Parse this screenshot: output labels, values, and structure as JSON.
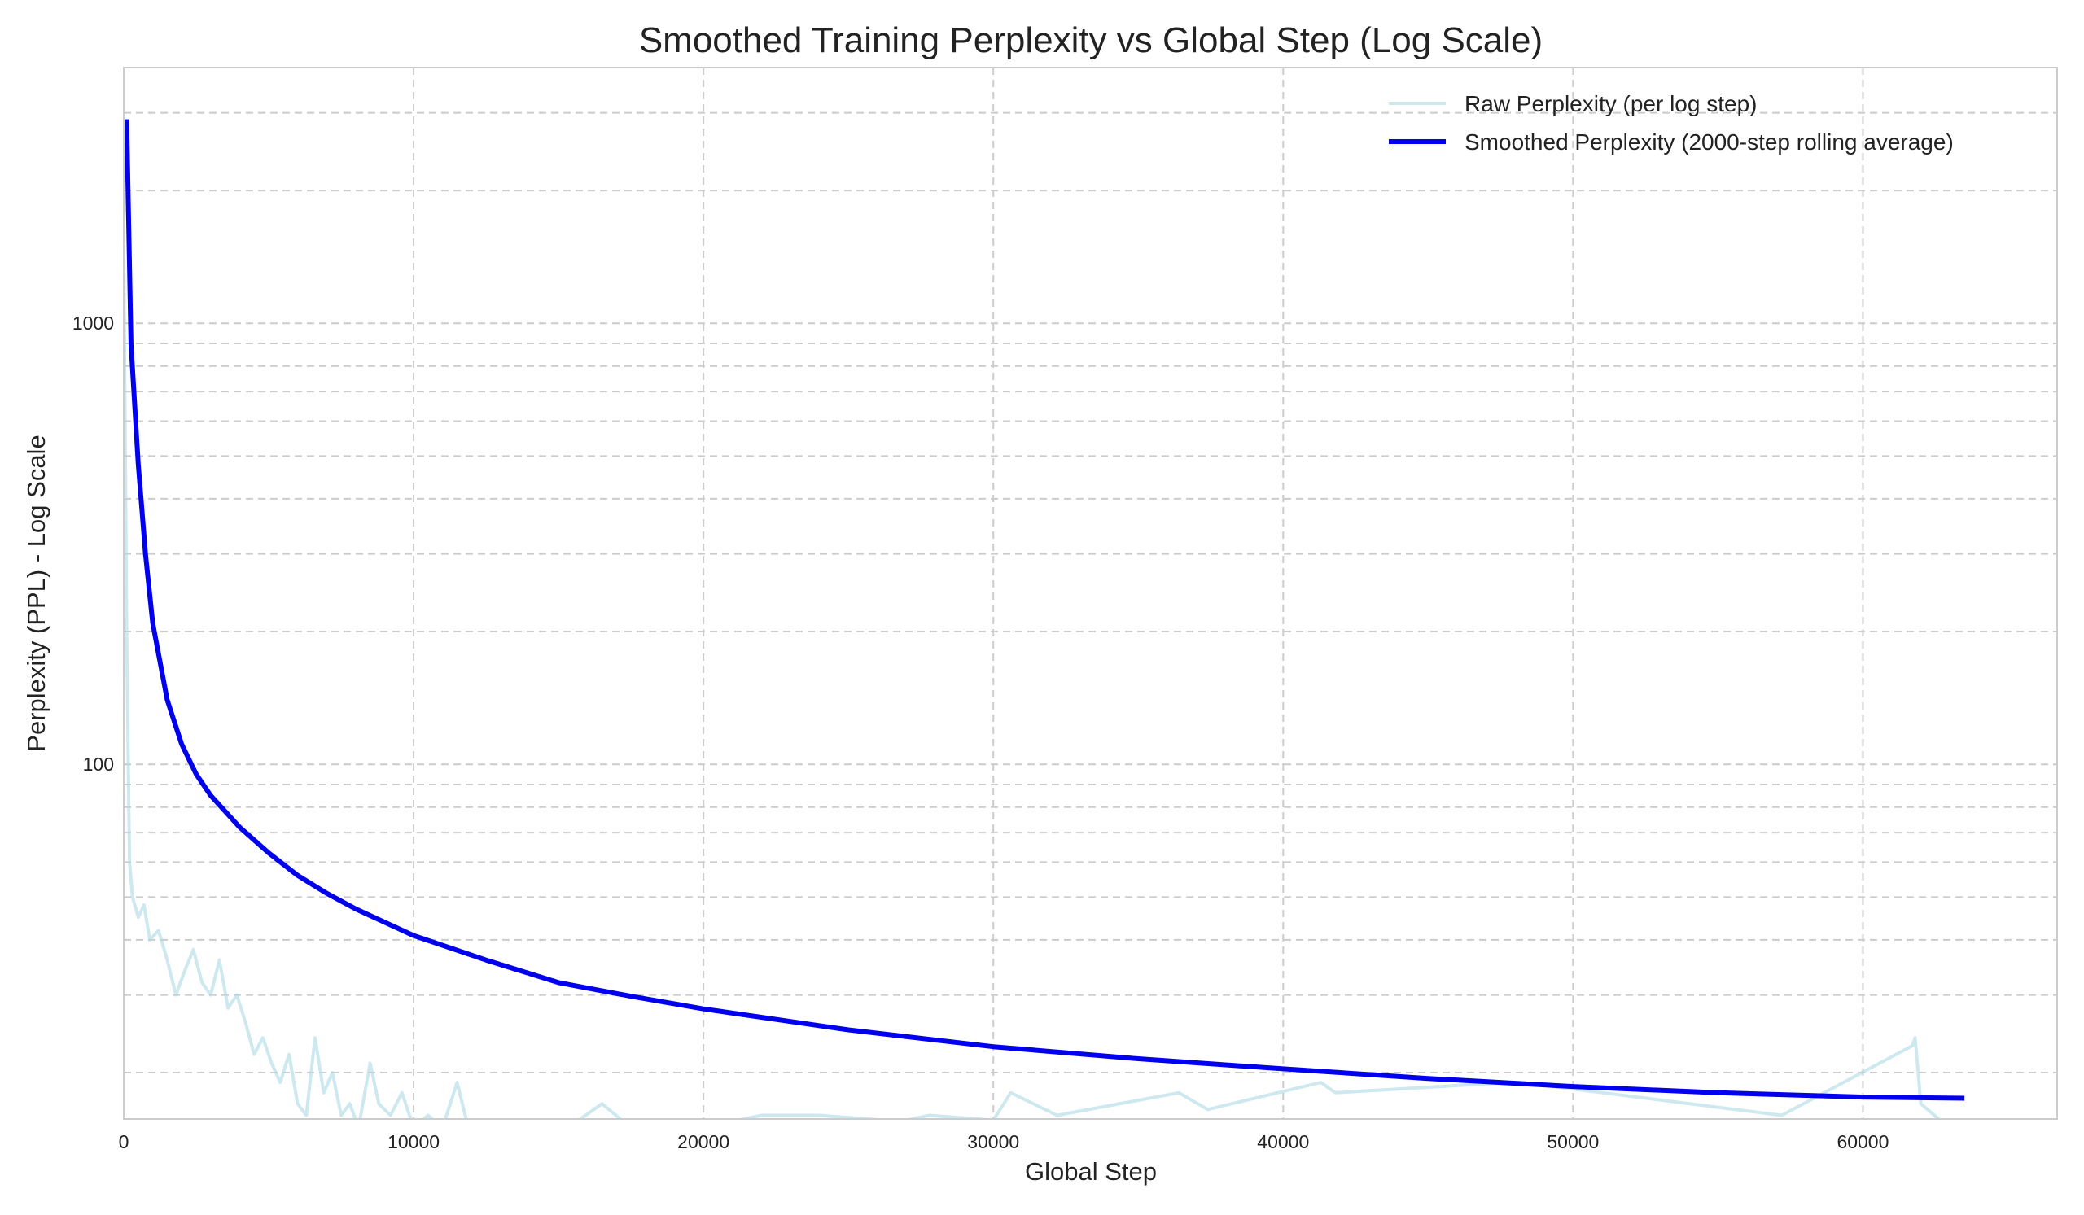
{
  "chart_data": {
    "type": "line",
    "title": "Smoothed Training Perplexity vs Global Step (Log Scale)",
    "xlabel": "Global Step",
    "ylabel": "Perplexity (PPL) - Log Scale",
    "xlim": [
      0,
      66700
    ],
    "ylim": [
      15.7,
      3800
    ],
    "yscale": "log",
    "grid": true,
    "legend_position": "top-right",
    "xticks": [
      0,
      10000,
      20000,
      30000,
      40000,
      50000,
      60000
    ],
    "xtick_labels": [
      "0",
      "10000",
      "20000",
      "30000",
      "40000",
      "50000",
      "60000"
    ],
    "yticks": [
      100,
      1000
    ],
    "ytick_labels": [
      "100",
      "1000"
    ],
    "series": [
      {
        "name": "Raw Perplexity (per log step)",
        "color": "#add8e6",
        "x": [
          0,
          100,
          200,
          300,
          500,
          700,
          900,
          1200,
          1500,
          1800,
          2100,
          2400,
          2700,
          3000,
          3300,
          3600,
          3900,
          4200,
          4500,
          4800,
          5100,
          5400,
          5700,
          6000,
          6300,
          6600,
          6900,
          7200,
          7500,
          7800,
          8100,
          8500,
          8800,
          9200,
          9600,
          10000,
          10500,
          11000,
          11500,
          12000,
          13000,
          14000,
          15000,
          16500,
          17500,
          20000,
          22000,
          24000,
          26800,
          27800,
          30000,
          30600,
          32200,
          36400,
          37400,
          41300,
          41800,
          47800,
          48200,
          57200,
          61700,
          61800,
          62000,
          63500
        ],
        "y": [
          1500,
          200,
          60,
          50,
          45,
          48,
          40,
          42,
          36,
          30,
          34,
          38,
          32,
          30,
          36,
          28,
          30,
          26,
          22,
          24,
          21,
          19,
          22,
          17,
          16,
          24,
          18,
          20,
          16,
          17,
          15,
          21,
          17,
          16,
          18,
          15,
          16,
          15,
          19,
          14,
          15,
          14,
          14.5,
          17,
          15,
          15,
          16,
          16,
          15.5,
          16,
          15.6,
          18,
          16,
          18,
          16.5,
          19,
          18,
          19,
          19,
          16,
          23,
          24,
          17,
          14
        ]
      },
      {
        "name": "Smoothed Perplexity (2000-step rolling average)",
        "color": "#0000ee",
        "x": [
          100,
          250,
          500,
          750,
          1000,
          1500,
          2000,
          2500,
          3000,
          4000,
          5000,
          6000,
          7000,
          8000,
          10000,
          12500,
          15000,
          17500,
          20000,
          25000,
          30000,
          35000,
          40000,
          45000,
          50000,
          55000,
          60000,
          63500
        ],
        "y": [
          2900,
          900,
          480,
          300,
          209,
          140,
          111,
          95,
          85,
          72,
          63,
          56,
          51,
          47,
          40.9,
          36,
          32,
          29.8,
          27.9,
          25,
          22.9,
          21.5,
          20.4,
          19.4,
          18.6,
          18,
          17.6,
          17.5
        ]
      }
    ]
  }
}
